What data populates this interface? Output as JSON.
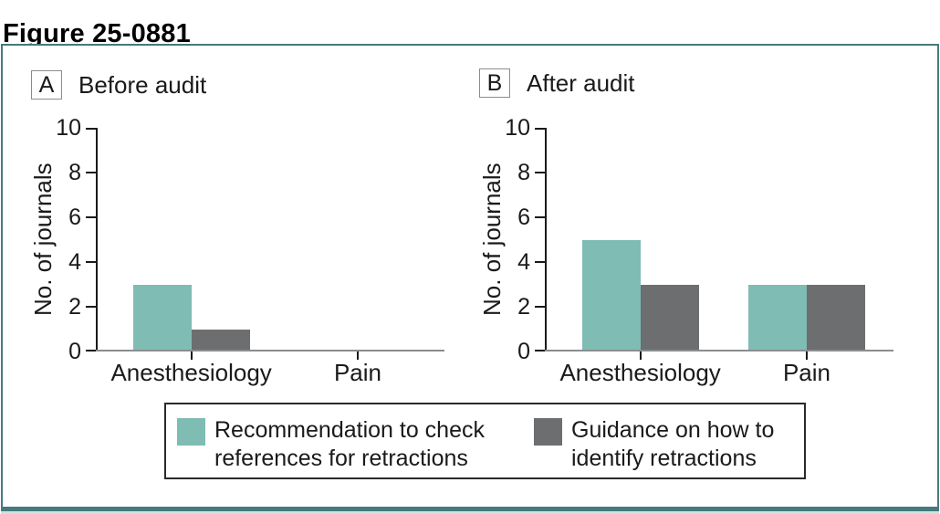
{
  "title": "Figure 25-0881",
  "colors": {
    "teal_bar": "#7fbcb4",
    "gray_bar": "#6c6e70",
    "frame_teal": "#467a7c",
    "frame_light_strip": "#cfe0e0",
    "axis_black": "#1a1a1a",
    "baseline_gray": "#8a8d8f"
  },
  "panels": [
    {
      "tag": "A",
      "title": "Before audit"
    },
    {
      "tag": "B",
      "title": "After audit"
    }
  ],
  "chart_data": [
    {
      "type": "bar",
      "panel": "A",
      "panel_title": "Before audit",
      "categories": [
        "Anesthesiology",
        "Pain"
      ],
      "series": [
        {
          "name": "Recommendation to check references for retractions",
          "color": "#7fbcb4",
          "values": [
            3,
            0
          ]
        },
        {
          "name": "Guidance on how to identify retractions",
          "color": "#6c6e70",
          "values": [
            1,
            0
          ]
        }
      ],
      "xlabel": "",
      "ylabel": "No. of journals",
      "ylim": [
        0,
        10
      ],
      "ytick_step": 2,
      "yticks": [
        0,
        2,
        4,
        6,
        8,
        10
      ],
      "grid": false,
      "legend_position": "bottom-outside-shared"
    },
    {
      "type": "bar",
      "panel": "B",
      "panel_title": "After audit",
      "categories": [
        "Anesthesiology",
        "Pain"
      ],
      "series": [
        {
          "name": "Recommendation to check references for retractions",
          "color": "#7fbcb4",
          "values": [
            5,
            3
          ]
        },
        {
          "name": "Guidance on how to identify retractions",
          "color": "#6c6e70",
          "values": [
            3,
            3
          ]
        }
      ],
      "xlabel": "",
      "ylabel": "No. of journals",
      "ylim": [
        0,
        10
      ],
      "ytick_step": 2,
      "yticks": [
        0,
        2,
        4,
        6,
        8,
        10
      ],
      "grid": false,
      "legend_position": "bottom-outside-shared"
    }
  ],
  "legend": {
    "items": [
      {
        "label_line1": "Recommendation to check",
        "label_line2": "references for retractions",
        "color": "#7fbcb4"
      },
      {
        "label_line1": "Guidance on how to",
        "label_line2": "identify retractions",
        "color": "#6c6e70"
      }
    ]
  }
}
